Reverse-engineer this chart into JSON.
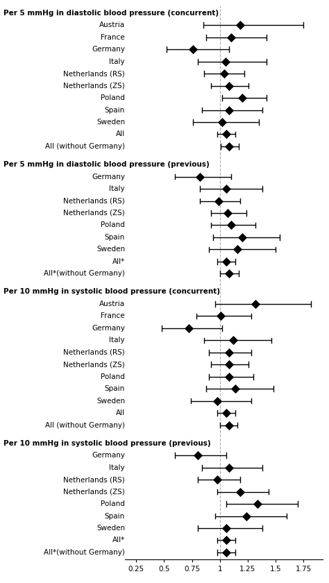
{
  "sections": [
    {
      "title": "Per 5 mmHg in diastolic blood pressure (concurrent)",
      "rows": [
        {
          "label": "Austria",
          "or": 1.18,
          "lo": 0.85,
          "hi": 1.75
        },
        {
          "label": "France",
          "or": 1.1,
          "lo": 0.88,
          "hi": 1.42
        },
        {
          "label": "Germany",
          "or": 0.76,
          "lo": 0.52,
          "hi": 1.08
        },
        {
          "label": "Italy",
          "or": 1.05,
          "lo": 0.8,
          "hi": 1.42
        },
        {
          "label": "Netherlands (RS)",
          "or": 1.04,
          "lo": 0.86,
          "hi": 1.22
        },
        {
          "label": "Netherlands (ZS)",
          "or": 1.08,
          "lo": 0.92,
          "hi": 1.26
        },
        {
          "label": "Poland",
          "or": 1.2,
          "lo": 1.02,
          "hi": 1.42
        },
        {
          "label": "Spain",
          "or": 1.08,
          "lo": 0.84,
          "hi": 1.38
        },
        {
          "label": "Sweden",
          "or": 1.02,
          "lo": 0.76,
          "hi": 1.35
        },
        {
          "label": "All",
          "or": 1.06,
          "lo": 0.98,
          "hi": 1.14
        },
        {
          "label": "All (without Germany)",
          "or": 1.08,
          "lo": 1.01,
          "hi": 1.17
        }
      ]
    },
    {
      "title": "Per 5 mmHg in diastolic blood pressure (previous)",
      "rows": [
        {
          "label": "Germany",
          "or": 0.82,
          "lo": 0.6,
          "hi": 1.1
        },
        {
          "label": "Italy",
          "or": 1.06,
          "lo": 0.82,
          "hi": 1.38
        },
        {
          "label": "Netherlands (RS)",
          "or": 0.99,
          "lo": 0.82,
          "hi": 1.18
        },
        {
          "label": "Netherlands (ZS)",
          "or": 1.07,
          "lo": 0.92,
          "hi": 1.24
        },
        {
          "label": "Poland",
          "or": 1.1,
          "lo": 0.92,
          "hi": 1.32
        },
        {
          "label": "Spain",
          "or": 1.2,
          "lo": 0.94,
          "hi": 1.54
        },
        {
          "label": "Sweden",
          "or": 1.16,
          "lo": 0.9,
          "hi": 1.5
        },
        {
          "label": "All*",
          "or": 1.06,
          "lo": 0.98,
          "hi": 1.14
        },
        {
          "label": "All*(without Germany)",
          "or": 1.08,
          "lo": 1.0,
          "hi": 1.17
        }
      ]
    },
    {
      "title": "Per 10 mmHg in systolic blood pressure (concurrent)",
      "rows": [
        {
          "label": "Austria",
          "or": 1.32,
          "lo": 0.96,
          "hi": 1.82
        },
        {
          "label": "France",
          "or": 1.01,
          "lo": 0.79,
          "hi": 1.28
        },
        {
          "label": "Germany",
          "or": 0.72,
          "lo": 0.48,
          "hi": 1.02
        },
        {
          "label": "Italy",
          "or": 1.12,
          "lo": 0.86,
          "hi": 1.46
        },
        {
          "label": "Netherlands (RS)",
          "or": 1.08,
          "lo": 0.9,
          "hi": 1.28
        },
        {
          "label": "Netherlands (ZS)",
          "or": 1.08,
          "lo": 0.92,
          "hi": 1.26
        },
        {
          "label": "Poland",
          "or": 1.08,
          "lo": 0.9,
          "hi": 1.3
        },
        {
          "label": "Spain",
          "or": 1.14,
          "lo": 0.88,
          "hi": 1.48
        },
        {
          "label": "Sweden",
          "or": 0.98,
          "lo": 0.74,
          "hi": 1.28
        },
        {
          "label": "All",
          "or": 1.06,
          "lo": 0.98,
          "hi": 1.14
        },
        {
          "label": "All (without Germany)",
          "or": 1.08,
          "lo": 1.0,
          "hi": 1.16
        }
      ]
    },
    {
      "title": "Per 10 mmHg in systolic blood pressure (previous)",
      "rows": [
        {
          "label": "Germany",
          "or": 0.8,
          "lo": 0.6,
          "hi": 1.06
        },
        {
          "label": "Italy",
          "or": 1.08,
          "lo": 0.84,
          "hi": 1.38
        },
        {
          "label": "Netherlands (RS)",
          "or": 0.98,
          "lo": 0.8,
          "hi": 1.18
        },
        {
          "label": "Netherlands (ZS)",
          "or": 1.18,
          "lo": 0.98,
          "hi": 1.44
        },
        {
          "label": "Poland",
          "or": 1.34,
          "lo": 1.06,
          "hi": 1.7
        },
        {
          "label": "Spain",
          "or": 1.24,
          "lo": 0.96,
          "hi": 1.6
        },
        {
          "label": "Sweden",
          "or": 1.06,
          "lo": 0.8,
          "hi": 1.38
        },
        {
          "label": "All*",
          "or": 1.06,
          "lo": 0.98,
          "hi": 1.14
        },
        {
          "label": "All*(without Germany)",
          "or": 1.06,
          "lo": 0.98,
          "hi": 1.14
        }
      ]
    }
  ],
  "xlim": [
    0.15,
    1.92
  ],
  "xticks": [
    0.25,
    0.5,
    0.75,
    1.0,
    1.25,
    1.5,
    1.75
  ],
  "xticklabels": [
    "0.25",
    "0.5",
    "0.75",
    "1",
    "1.25",
    "1.5",
    "1.75"
  ],
  "vline": 1.0,
  "title_fontsize": 7.5,
  "label_fontsize": 7.5,
  "tick_fontsize": 7.5,
  "diamond_size": 45,
  "diamond_color": "#000000",
  "line_color": "#000000",
  "vline_color": "#aaaaaa",
  "background_color": "#ffffff"
}
